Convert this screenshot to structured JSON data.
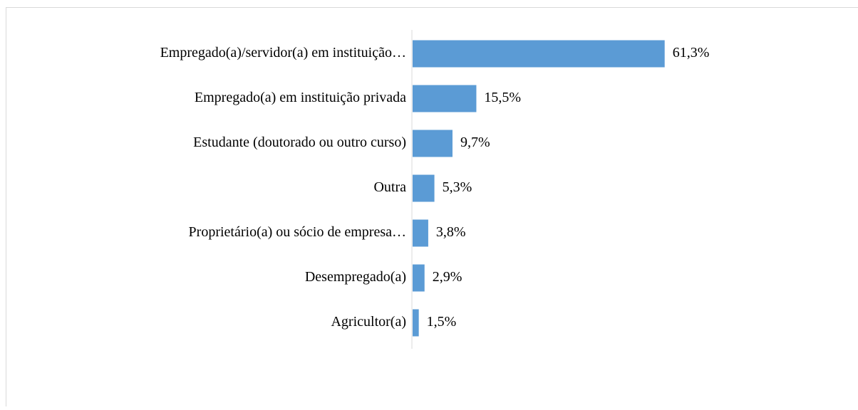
{
  "chart_data": {
    "type": "bar",
    "orientation": "horizontal",
    "categories": [
      "Empregado(a)/servidor(a) em instituição…",
      "Empregado(a) em instituição privada",
      "Estudante (doutorado ou outro curso)",
      "Outra",
      "Proprietário(a) ou sócio de empresa…",
      "Desempregado(a)",
      "Agricultor(a)"
    ],
    "values": [
      61.3,
      15.5,
      9.7,
      5.3,
      3.8,
      2.9,
      1.5
    ],
    "value_labels": [
      "61,3%",
      "15,5%",
      "9,7%",
      "5,3%",
      "3,8%",
      "2,9%",
      "1,5%"
    ],
    "color": "#5b9bd5"
  }
}
